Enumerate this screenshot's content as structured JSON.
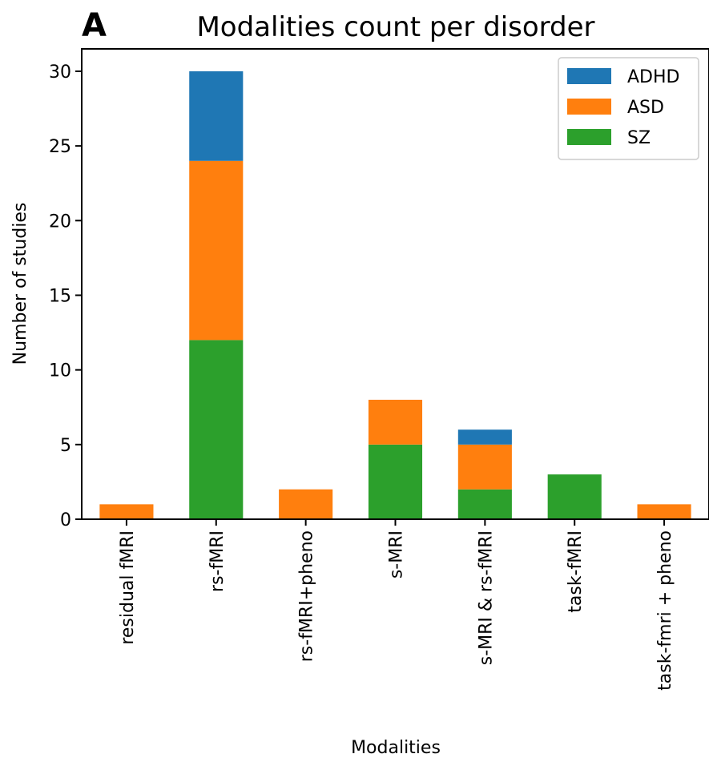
{
  "panel_label": "A",
  "chart_data": {
    "type": "bar",
    "stacked": true,
    "title": "Modalities count per disorder",
    "xlabel": "Modalities",
    "ylabel": "Number of studies",
    "categories": [
      "residual fMRI",
      "rs-fMRI",
      "rs-fMRI+pheno",
      "s-MRI",
      "s-MRI & rs-fMRI",
      "task-fMRI",
      "task-fmri + pheno"
    ],
    "series": [
      {
        "name": "SZ",
        "color": "#2ca02c",
        "values": [
          0,
          12,
          0,
          5,
          2,
          3,
          0
        ]
      },
      {
        "name": "ASD",
        "color": "#ff7f0e",
        "values": [
          1,
          12,
          2,
          3,
          3,
          0,
          1
        ]
      },
      {
        "name": "ADHD",
        "color": "#1f77b4",
        "values": [
          0,
          6,
          0,
          0,
          1,
          0,
          0
        ]
      }
    ],
    "legend_order": [
      "ADHD",
      "ASD",
      "SZ"
    ],
    "legend_position": "top-right",
    "ylim": [
      0,
      31.5
    ],
    "yticks": [
      0,
      5,
      10,
      15,
      20,
      25,
      30
    ],
    "grid": false
  }
}
